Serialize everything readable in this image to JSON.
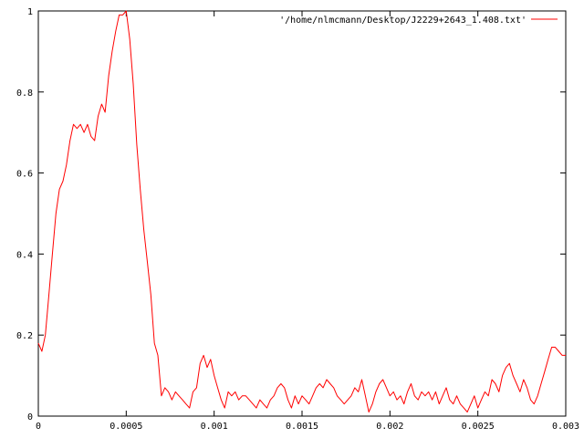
{
  "chart_data": {
    "type": "line",
    "title": "",
    "xlabel": "",
    "ylabel": "",
    "xlim": [
      0,
      0.003
    ],
    "ylim": [
      0,
      1
    ],
    "grid": false,
    "legend_position": "top-right",
    "x_ticks": [
      {
        "value": 0,
        "label": "0"
      },
      {
        "value": 0.0005,
        "label": "0.0005"
      },
      {
        "value": 0.001,
        "label": "0.001"
      },
      {
        "value": 0.0015,
        "label": "0.0015"
      },
      {
        "value": 0.002,
        "label": "0.002"
      },
      {
        "value": 0.0025,
        "label": "0.0025"
      },
      {
        "value": 0.003,
        "label": "0.003"
      }
    ],
    "y_ticks": [
      {
        "value": 0,
        "label": "0"
      },
      {
        "value": 0.2,
        "label": "0.2"
      },
      {
        "value": 0.4,
        "label": "0.4"
      },
      {
        "value": 0.6,
        "label": "0.6"
      },
      {
        "value": 0.8,
        "label": "0.8"
      },
      {
        "value": 1,
        "label": "1"
      }
    ],
    "series": [
      {
        "name": "'/home/nlmcmann/Desktop/J2229+2643_1.408.txt'",
        "color": "#ff0000",
        "x": [
          0,
          2e-05,
          4e-05,
          6e-05,
          8e-05,
          0.0001,
          0.00012,
          0.00014,
          0.00016,
          0.00018,
          0.0002,
          0.00022,
          0.00024,
          0.00026,
          0.00028,
          0.0003,
          0.00032,
          0.00034,
          0.00036,
          0.00038,
          0.0004,
          0.00042,
          0.00044,
          0.00046,
          0.00048,
          0.0005,
          0.00052,
          0.00054,
          0.00056,
          0.00058,
          0.0006,
          0.00062,
          0.00064,
          0.00066,
          0.00068,
          0.0007,
          0.00072,
          0.00074,
          0.00076,
          0.00078,
          0.0008,
          0.00082,
          0.00084,
          0.00086,
          0.00088,
          0.0009,
          0.00092,
          0.00094,
          0.00096,
          0.00098,
          0.001,
          0.00102,
          0.00104,
          0.00106,
          0.00108,
          0.0011,
          0.00112,
          0.00114,
          0.00116,
          0.00118,
          0.0012,
          0.00122,
          0.00124,
          0.00126,
          0.00128,
          0.0013,
          0.00132,
          0.00134,
          0.00136,
          0.00138,
          0.0014,
          0.00142,
          0.00144,
          0.00146,
          0.00148,
          0.0015,
          0.00152,
          0.00154,
          0.00156,
          0.00158,
          0.0016,
          0.00162,
          0.00164,
          0.00166,
          0.00168,
          0.0017,
          0.00172,
          0.00174,
          0.00176,
          0.00178,
          0.0018,
          0.00182,
          0.00184,
          0.00186,
          0.00188,
          0.0019,
          0.00192,
          0.00194,
          0.00196,
          0.00198,
          0.002,
          0.00202,
          0.00204,
          0.00206,
          0.00208,
          0.0021,
          0.00212,
          0.00214,
          0.00216,
          0.00218,
          0.0022,
          0.00222,
          0.00224,
          0.00226,
          0.00228,
          0.0023,
          0.00232,
          0.00234,
          0.00236,
          0.00238,
          0.0024,
          0.00242,
          0.00244,
          0.00246,
          0.00248,
          0.0025,
          0.00252,
          0.00254,
          0.00256,
          0.00258,
          0.0026,
          0.00262,
          0.00264,
          0.00266,
          0.00268,
          0.0027,
          0.00272,
          0.00274,
          0.00276,
          0.00278,
          0.0028,
          0.00282,
          0.00284,
          0.00286,
          0.00288,
          0.0029,
          0.00292,
          0.00294,
          0.00296,
          0.00298,
          0.003
        ],
        "y": [
          0.18,
          0.16,
          0.2,
          0.3,
          0.4,
          0.5,
          0.56,
          0.58,
          0.62,
          0.68,
          0.72,
          0.71,
          0.72,
          0.7,
          0.72,
          0.69,
          0.68,
          0.74,
          0.77,
          0.75,
          0.84,
          0.9,
          0.95,
          0.99,
          0.99,
          1.0,
          0.93,
          0.82,
          0.67,
          0.56,
          0.46,
          0.38,
          0.3,
          0.18,
          0.15,
          0.05,
          0.07,
          0.06,
          0.04,
          0.06,
          0.05,
          0.04,
          0.03,
          0.02,
          0.06,
          0.07,
          0.13,
          0.15,
          0.12,
          0.14,
          0.1,
          0.07,
          0.04,
          0.02,
          0.06,
          0.05,
          0.06,
          0.04,
          0.05,
          0.05,
          0.04,
          0.03,
          0.02,
          0.04,
          0.03,
          0.02,
          0.04,
          0.05,
          0.07,
          0.08,
          0.07,
          0.04,
          0.02,
          0.05,
          0.03,
          0.05,
          0.04,
          0.03,
          0.05,
          0.07,
          0.08,
          0.07,
          0.09,
          0.08,
          0.07,
          0.05,
          0.04,
          0.03,
          0.04,
          0.05,
          0.07,
          0.06,
          0.09,
          0.05,
          0.01,
          0.03,
          0.06,
          0.08,
          0.09,
          0.07,
          0.05,
          0.06,
          0.04,
          0.05,
          0.03,
          0.06,
          0.08,
          0.05,
          0.04,
          0.06,
          0.05,
          0.06,
          0.04,
          0.06,
          0.03,
          0.05,
          0.07,
          0.04,
          0.03,
          0.05,
          0.03,
          0.02,
          0.01,
          0.03,
          0.05,
          0.02,
          0.04,
          0.06,
          0.05,
          0.09,
          0.08,
          0.06,
          0.1,
          0.12,
          0.13,
          0.1,
          0.08,
          0.06,
          0.09,
          0.07,
          0.04,
          0.03,
          0.05,
          0.08,
          0.11,
          0.14,
          0.17,
          0.17,
          0.16,
          0.15,
          0.15
        ]
      }
    ]
  }
}
